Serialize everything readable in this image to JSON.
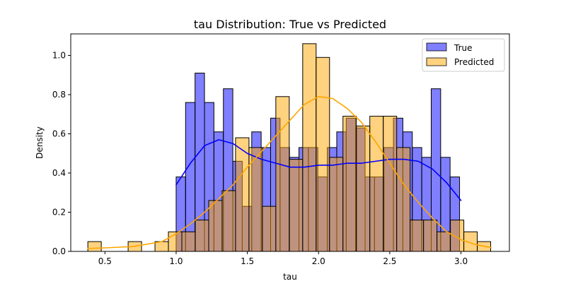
{
  "chart_data": {
    "type": "histogram",
    "title": "tau Distribution: True vs Predicted",
    "xlabel": "tau",
    "ylabel": "Density",
    "xlim": [
      0.26,
      3.34
    ],
    "ylim": [
      0,
      1.11
    ],
    "xticks": [
      0.5,
      1.0,
      1.5,
      2.0,
      2.5,
      3.0
    ],
    "xtick_labels": [
      "0.5",
      "1.0",
      "1.5",
      "2.0",
      "2.5",
      "3.0"
    ],
    "yticks": [
      0.0,
      0.2,
      0.4,
      0.6,
      0.8,
      1.0
    ],
    "ytick_labels": [
      "0.0",
      "0.2",
      "0.4",
      "0.6",
      "0.8",
      "1.0"
    ],
    "grid": false,
    "legend": {
      "placement": "top-right"
    },
    "series": [
      {
        "name": "True",
        "color": "#0000ff",
        "bar_opacity": 0.5,
        "bin_width": 0.0663,
        "bin_starts": [
          1.0,
          1.0663,
          1.1327,
          1.199,
          1.2653,
          1.3317,
          1.398,
          1.4643,
          1.5307,
          1.597,
          1.6633,
          1.7297,
          1.796,
          1.8623,
          1.9287,
          1.995,
          2.0613,
          2.1277,
          2.194,
          2.2603,
          2.3267,
          2.393,
          2.4593,
          2.5257,
          2.592,
          2.6583,
          2.7247,
          2.791,
          2.8573,
          2.9237
        ],
        "values": [
          0.38,
          0.76,
          0.91,
          0.76,
          0.61,
          0.83,
          0.46,
          0.23,
          0.61,
          0.53,
          0.68,
          0.53,
          0.48,
          0.53,
          0.53,
          0.38,
          0.53,
          0.61,
          0.68,
          0.63,
          0.38,
          0.38,
          0.53,
          0.68,
          0.61,
          0.53,
          0.48,
          0.83,
          0.48,
          0.38
        ],
        "kde": {
          "x": [
            1.0,
            1.1,
            1.2,
            1.3,
            1.4,
            1.5,
            1.6,
            1.7,
            1.8,
            1.9,
            2.0,
            2.1,
            2.2,
            2.3,
            2.4,
            2.5,
            2.6,
            2.7,
            2.8,
            2.9,
            3.0
          ],
          "y": [
            0.34,
            0.45,
            0.54,
            0.57,
            0.55,
            0.5,
            0.47,
            0.45,
            0.43,
            0.43,
            0.44,
            0.44,
            0.45,
            0.45,
            0.46,
            0.47,
            0.47,
            0.46,
            0.42,
            0.35,
            0.26
          ]
        }
      },
      {
        "name": "Predicted",
        "color": "#ffa500",
        "bar_opacity": 0.5,
        "bin_width": 0.0943,
        "bin_starts": [
          0.38,
          0.4743,
          0.5686,
          0.6629,
          0.7571,
          0.8514,
          0.9457,
          1.04,
          1.1343,
          1.2286,
          1.3229,
          1.4171,
          1.5114,
          1.6057,
          1.7,
          1.7943,
          1.8886,
          1.9829,
          2.0771,
          2.1714,
          2.2657,
          2.36,
          2.4543,
          2.5486,
          2.6429,
          2.7371,
          2.8314,
          2.9257,
          3.02,
          3.1143
        ],
        "values": [
          0.05,
          0.0,
          0.0,
          0.05,
          0.0,
          0.05,
          0.1,
          0.1,
          0.16,
          0.26,
          0.31,
          0.58,
          0.53,
          0.23,
          0.79,
          0.47,
          1.06,
          0.99,
          0.48,
          0.69,
          0.64,
          0.69,
          0.69,
          0.53,
          0.16,
          0.16,
          0.1,
          0.16,
          0.1,
          0.05
        ],
        "kde": {
          "x": [
            0.38,
            0.5,
            0.7,
            0.9,
            1.0,
            1.1,
            1.2,
            1.3,
            1.4,
            1.5,
            1.6,
            1.7,
            1.8,
            1.9,
            2.0,
            2.1,
            2.2,
            2.3,
            2.4,
            2.5,
            2.6,
            2.7,
            2.8,
            2.9,
            3.0,
            3.1,
            3.21
          ],
          "y": [
            0.015,
            0.018,
            0.025,
            0.05,
            0.09,
            0.14,
            0.2,
            0.27,
            0.34,
            0.43,
            0.51,
            0.59,
            0.67,
            0.75,
            0.79,
            0.78,
            0.73,
            0.66,
            0.56,
            0.45,
            0.34,
            0.25,
            0.17,
            0.1,
            0.06,
            0.035,
            0.02
          ]
        }
      }
    ]
  }
}
